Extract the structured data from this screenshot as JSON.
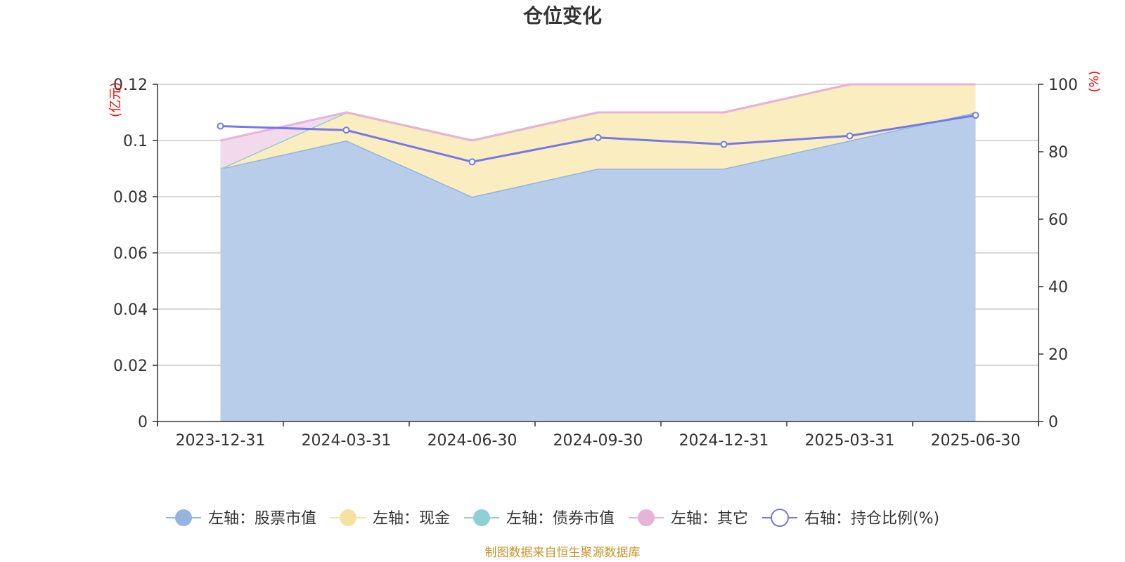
{
  "chart_data": {
    "type": "area",
    "title": "仓位变化",
    "categories": [
      "2023-12-31",
      "2024-03-31",
      "2024-06-30",
      "2024-09-30",
      "2024-12-31",
      "2025-03-31",
      "2025-06-30"
    ],
    "left_axis": {
      "unit": "(亿元)",
      "ylim": [
        0,
        0.12
      ],
      "ticks": [
        "0",
        "0.02",
        "0.04",
        "0.06",
        "0.08",
        "0.1",
        "0.12"
      ],
      "tick_values": [
        0,
        0.02,
        0.04,
        0.06,
        0.08,
        0.1,
        0.12
      ]
    },
    "right_axis": {
      "unit": "(%)",
      "ylim": [
        0,
        100
      ],
      "ticks": [
        "0",
        "20",
        "40",
        "60",
        "80",
        "100"
      ],
      "tick_values": [
        0,
        20,
        40,
        60,
        80,
        100
      ]
    },
    "grid": true,
    "series": [
      {
        "name": "左轴：股票市值",
        "axis": "left",
        "stacked": true,
        "values": [
          0.09,
          0.1,
          0.08,
          0.09,
          0.09,
          0.1,
          0.11
        ],
        "color": "#95b4e0",
        "fill": "#b8cdea"
      },
      {
        "name": "左轴：现金",
        "axis": "left",
        "stacked": true,
        "values": [
          0.0,
          0.01,
          0.02,
          0.02,
          0.02,
          0.02,
          0.01
        ],
        "color": "#f5e2a3",
        "fill": "#faedbf"
      },
      {
        "name": "左轴：债券市值",
        "axis": "left",
        "stacked": true,
        "values": [
          0,
          0,
          0,
          0,
          0,
          0,
          0
        ],
        "color": "#8fd0d4",
        "fill": "#b6e2e4"
      },
      {
        "name": "左轴：其它",
        "axis": "left",
        "stacked": true,
        "values": [
          0.01,
          0,
          0,
          0,
          0,
          0,
          0
        ],
        "color": "#e6b4d8",
        "fill": "#f3d9ec"
      },
      {
        "name": "右轴：持仓比例(%)",
        "axis": "right",
        "type": "line",
        "values": [
          87.6,
          86.4,
          77.0,
          84.2,
          82.2,
          84.7,
          90.8
        ],
        "color": "#7579e7"
      }
    ],
    "legend_position": "bottom",
    "source": "制图数据来自恒生聚源数据库"
  }
}
